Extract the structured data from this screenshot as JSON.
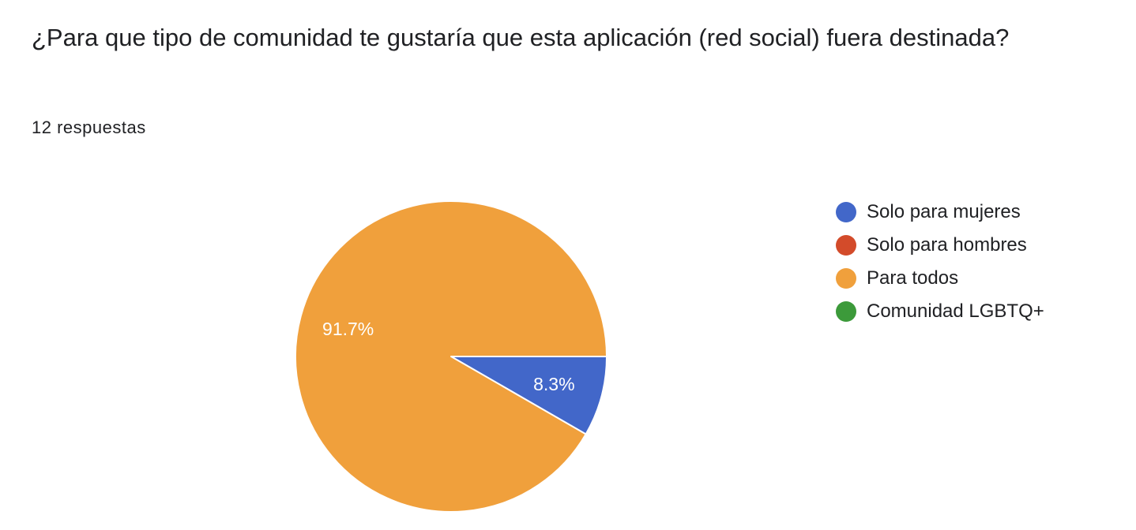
{
  "question": {
    "title": "¿Para que tipo de comunidad te gustaría que esta aplicación (red social) fuera destinada?",
    "responses": "12 respuestas"
  },
  "chart_data": {
    "type": "pie",
    "series": [
      {
        "name": "Solo para mujeres",
        "value": 1,
        "percent": 8.3,
        "label": "8.3%",
        "color": "#4267c9"
      },
      {
        "name": "Solo para hombres",
        "value": 0,
        "percent": 0,
        "label": "",
        "color": "#d34b2a"
      },
      {
        "name": "Para todos",
        "value": 11,
        "percent": 91.7,
        "label": "91.7%",
        "color": "#f0a03c"
      },
      {
        "name": "Comunidad LGBTQ+",
        "value": 0,
        "percent": 0,
        "label": "",
        "color": "#3c9a3a"
      }
    ],
    "legend_position": "right",
    "start_angle": "3 o'clock",
    "direction": "clockwise"
  }
}
